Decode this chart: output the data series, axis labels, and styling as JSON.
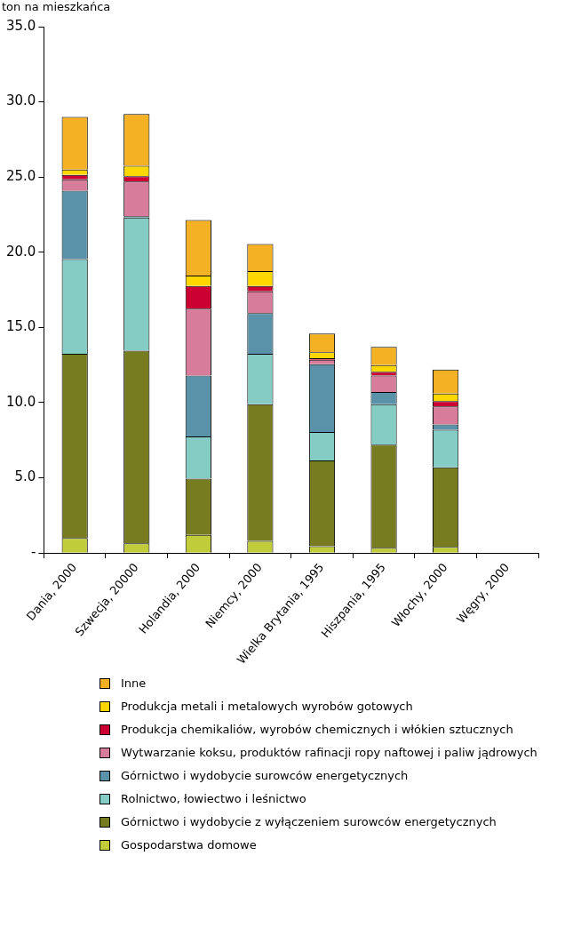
{
  "chart_data": {
    "type": "bar",
    "stacked": true,
    "ylabel": "ton na mieszkańca",
    "categories": [
      "Dania, 2000",
      "Szwecja, 20000",
      "Holandia, 2000",
      "Niemcy, 2000",
      "Wielka Brytania, 1995",
      "Hiszpania, 1995",
      "Włochy, 2000",
      "Węgry, 2000"
    ],
    "series": [
      {
        "name": "Gospodarstwa domowe",
        "color": "#c0cc3a",
        "values": [
          1.0,
          0.65,
          1.2,
          0.8,
          0.45,
          0.35,
          0.4,
          null
        ]
      },
      {
        "name": "Górnictwo i wydobycie z wyłączeniem surowców energetycznych",
        "color": "#787c20",
        "values": [
          12.25,
          12.8,
          3.75,
          9.1,
          5.7,
          6.85,
          5.3,
          null
        ]
      },
      {
        "name": "Rolnictwo, łowiectwo i leśnictwo",
        "color": "#84ccc4",
        "values": [
          6.3,
          8.85,
          2.8,
          3.35,
          1.9,
          2.7,
          2.5,
          null
        ]
      },
      {
        "name": "Górnictwo i wydobycie surowców energetycznych",
        "color": "#5a92aa",
        "values": [
          4.55,
          0.1,
          4.05,
          2.7,
          4.5,
          0.8,
          0.35,
          null
        ]
      },
      {
        "name": "Wytwarzanie koksu, produktów rafinacji ropy naftowej i paliw jądrowych",
        "color": "#d87c9c",
        "values": [
          0.75,
          2.3,
          4.45,
          1.45,
          0.3,
          1.1,
          1.2,
          null
        ]
      },
      {
        "name": "Produkcja chemikaliów, wyrobów chemicznych i włókien sztucznych",
        "color": "#cc0033",
        "values": [
          0.3,
          0.35,
          1.5,
          0.35,
          0.1,
          0.25,
          0.35,
          null
        ]
      },
      {
        "name": "Produkcja metali i metalowych wyrobów gotowych",
        "color": "#ffd700",
        "values": [
          0.35,
          0.7,
          0.7,
          1.0,
          0.4,
          0.45,
          0.5,
          null
        ]
      },
      {
        "name": "Inne",
        "color": "#f5b124",
        "values": [
          3.5,
          3.45,
          3.7,
          1.8,
          1.25,
          1.2,
          1.6,
          null
        ]
      }
    ],
    "ylim": [
      0,
      35
    ],
    "yticks": [
      {
        "value": 0,
        "label": "-"
      },
      {
        "value": 5,
        "label": "5.0"
      },
      {
        "value": 10,
        "label": "10.0"
      },
      {
        "value": 15,
        "label": "15.0"
      },
      {
        "value": 20,
        "label": "20.0"
      },
      {
        "value": 25,
        "label": "25.0"
      },
      {
        "value": 30,
        "label": "30.0"
      },
      {
        "value": 35,
        "label": "35.0"
      }
    ],
    "grid": false,
    "legend": "bottom"
  }
}
